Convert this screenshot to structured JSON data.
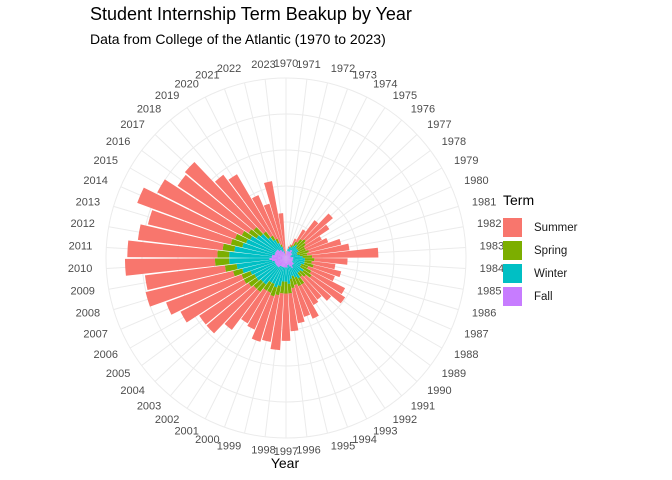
{
  "chart_data": {
    "type": "bar",
    "coord": "polar",
    "stacked": true,
    "title": "Student Internship Term Beakup by Year",
    "subtitle": "Data from College of the Atlantic (1970 to 2023)",
    "xlabel": "Year",
    "legend_title": "Term",
    "legend_position": "right",
    "grid": true,
    "categories": [
      "1970",
      "1971",
      "1972",
      "1973",
      "1974",
      "1975",
      "1976",
      "1977",
      "1978",
      "1979",
      "1980",
      "1981",
      "1982",
      "1983",
      "1984",
      "1985",
      "1986",
      "1987",
      "1988",
      "1989",
      "1990",
      "1991",
      "1992",
      "1993",
      "1994",
      "1995",
      "1996",
      "1997",
      "1998",
      "1999",
      "2000",
      "2001",
      "2002",
      "2003",
      "2004",
      "2005",
      "2006",
      "2007",
      "2008",
      "2009",
      "2010",
      "2011",
      "2012",
      "2013",
      "2014",
      "2015",
      "2016",
      "2017",
      "2018",
      "2019",
      "2020",
      "2021",
      "2022",
      "2023"
    ],
    "series": [
      {
        "name": "Fall",
        "color": "#C77CFF",
        "values": [
          2,
          3,
          3,
          3,
          3,
          4,
          4,
          3,
          3,
          3,
          2,
          2,
          2,
          3,
          3,
          3,
          3,
          3,
          3,
          4,
          4,
          4,
          5,
          4,
          3,
          3,
          4,
          4,
          4,
          4,
          4,
          4,
          4,
          5,
          5,
          5,
          5,
          5,
          5,
          6,
          7,
          6,
          6,
          5,
          5,
          5,
          5,
          5,
          4,
          4,
          3,
          3,
          2,
          1
        ]
      },
      {
        "name": "Winter",
        "color": "#00BFC4",
        "values": [
          0,
          0,
          1,
          2,
          2,
          2,
          3,
          3,
          3,
          3,
          3,
          3,
          4,
          4,
          5,
          5,
          5,
          4,
          4,
          5,
          4,
          4,
          5,
          5,
          5,
          6,
          7,
          6,
          6,
          8,
          9,
          8,
          8,
          9,
          9,
          10,
          10,
          11,
          14,
          15,
          17,
          18,
          16,
          14,
          13,
          12,
          10,
          9,
          7,
          5,
          4,
          2,
          1,
          0
        ]
      },
      {
        "name": "Spring",
        "color": "#7CAE00",
        "values": [
          0,
          0,
          0,
          0,
          1,
          2,
          3,
          5,
          4,
          3,
          4,
          5,
          3,
          4,
          4,
          3,
          4,
          3,
          5,
          4,
          3,
          2,
          3,
          4,
          4,
          4,
          4,
          5,
          5,
          4,
          4,
          4,
          4,
          4,
          4,
          4,
          5,
          4,
          4,
          5,
          6,
          5,
          5,
          5,
          5,
          4,
          4,
          4,
          3,
          2,
          2,
          1,
          0,
          0
        ]
      },
      {
        "name": "Summer",
        "color": "#F8766D",
        "values": [
          0,
          0,
          1,
          1,
          3,
          6,
          10,
          15,
          12,
          8,
          10,
          14,
          18,
          28,
          14,
          10,
          12,
          12,
          16,
          17,
          14,
          12,
          10,
          15,
          14,
          15,
          16,
          20,
          24,
          20,
          20,
          17,
          16,
          20,
          26,
          25,
          30,
          34,
          38,
          34,
          38,
          38,
          36,
          36,
          44,
          40,
          36,
          38,
          30,
          30,
          20,
          18,
          30,
          18
        ]
      }
    ],
    "legend_order": [
      "Summer",
      "Spring",
      "Winter",
      "Fall"
    ],
    "ylim": [
      0,
      76
    ]
  }
}
